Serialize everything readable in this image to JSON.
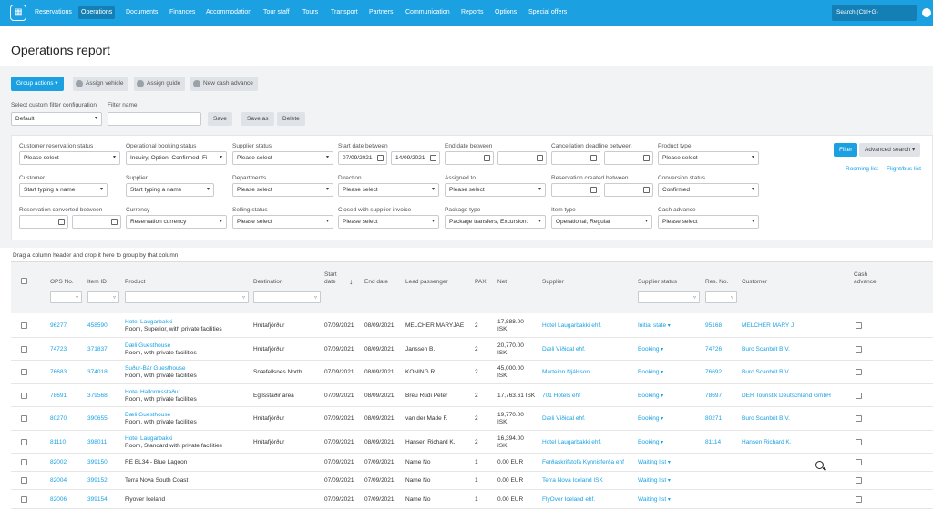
{
  "nav": {
    "search_placeholder": "Search (Ctrl+G)",
    "items": [
      "Reservations",
      "Operations",
      "Documents",
      "Finances",
      "Accommodation",
      "Tour staff",
      "Tours",
      "Transport",
      "Partners",
      "Communication",
      "Reports",
      "Options",
      "Special offers"
    ]
  },
  "page": {
    "title": "Operations report"
  },
  "actions": {
    "group_actions": "Group actions",
    "assign_vehicle": "Assign vehicle",
    "assign_guide": "Assign guide",
    "new_cash_advance": "New cash advance"
  },
  "custom_filter": {
    "select_label": "Select custom filter configuration",
    "select_value": "Default",
    "name_label": "Filter name",
    "name_value": "",
    "save": "Save",
    "save_as": "Save as",
    "delete": "Delete"
  },
  "filters": {
    "customer_reservation_status": {
      "label": "Customer reservation status",
      "value": "Please select"
    },
    "operational_booking_status": {
      "label": "Operational booking status",
      "value": "Inquiry, Option, Confirmed, Fi"
    },
    "supplier_status": {
      "label": "Supplier status",
      "value": "Please select"
    },
    "start_date_between": {
      "label": "Start date between",
      "from": "07/09/2021",
      "to": "14/09/2021"
    },
    "end_date_between": {
      "label": "End date between"
    },
    "cancellation_deadline": {
      "label": "Cancellation deadline between"
    },
    "product_type": {
      "label": "Product type",
      "value": "Please select"
    },
    "customer": {
      "label": "Customer",
      "placeholder": "Start typing a name"
    },
    "supplier": {
      "label": "Supplier",
      "placeholder": "Start typing a name"
    },
    "departments": {
      "label": "Departments",
      "value": "Please select"
    },
    "direction": {
      "label": "Direction",
      "value": "Please select"
    },
    "assigned_to": {
      "label": "Assigned to",
      "value": "Please select"
    },
    "reservation_created": {
      "label": "Reservation created between"
    },
    "conversion_status": {
      "label": "Conversion status",
      "value": "Confirmed"
    },
    "reservation_converted": {
      "label": "Reservation converted between"
    },
    "currency": {
      "label": "Currency",
      "value": "Reservation currency"
    },
    "selling_status": {
      "label": "Selling status",
      "value": "Please select"
    },
    "closed_with_supplier_invoice": {
      "label": "Closed with supplier invoice",
      "value": "Please select"
    },
    "package_type": {
      "label": "Package type",
      "value": "Package transfers, Excursion:"
    },
    "item_type": {
      "label": "Item type",
      "value": "Operational, Regular"
    },
    "cash_advance": {
      "label": "Cash advance",
      "value": "Please select"
    },
    "filter_button": "Filter",
    "advanced_search": "Advanced search",
    "rooming_list": "Rooming list",
    "flight_bus_list": "Flight/bus list"
  },
  "grid": {
    "group_hint": "Drag a column header and drop it here to group by that column",
    "columns": {
      "ops_no": "OPS No.",
      "item_id": "Item ID",
      "product": "Product",
      "destination": "Destination",
      "start_date_1": "Start",
      "start_date_2": "date",
      "end_date": "End date",
      "lead_passenger": "Lead passenger",
      "pax": "PAX",
      "net": "Net",
      "supplier": "Supplier",
      "supplier_status": "Supplier status",
      "res_no": "Res. No.",
      "customer": "Customer",
      "cash_advance_1": "Cash",
      "cash_advance_2": "advance"
    },
    "rows": [
      {
        "ops": "96277",
        "item": "458590",
        "product": "Hotel Laugarbakki",
        "product_sub": "Room, Superior, with private facilities",
        "dest": "Hrútafjörður",
        "start": "07/09/2021",
        "end": "08/09/2021",
        "lead": "MELCHER MARYJAE",
        "pax": "2",
        "net1": "17,888.00",
        "net2": "ISK",
        "supplier": "Hotel Laugarbakki ehf.",
        "status": "Initial state",
        "res": "95168",
        "customer": "MELCHER MARY J"
      },
      {
        "ops": "74723",
        "item": "371837",
        "product": "Dæli Guesthouse",
        "product_sub": "Room, with private facilities",
        "dest": "Hrútafjörður",
        "start": "07/09/2021",
        "end": "08/09/2021",
        "lead": "Janssen B.",
        "pax": "2",
        "net1": "20,770.00",
        "net2": "ISK",
        "supplier": "Dæli Víðidal ehf.",
        "status": "Booking",
        "res": "74726",
        "customer": "Buro Scanbrit B.V."
      },
      {
        "ops": "76683",
        "item": "374018",
        "product": "Suður-Bár Guesthouse",
        "product_sub": "Room, with private facilities",
        "dest": "Snæfellsnes North",
        "start": "07/09/2021",
        "end": "08/09/2021",
        "lead": "KONING R.",
        "pax": "2",
        "net1": "45,000.00",
        "net2": "ISK",
        "supplier": "Marteinn Njálsson",
        "status": "Booking",
        "res": "76692",
        "customer": "Buro Scanbrit B.V."
      },
      {
        "ops": "78691",
        "item": "379568",
        "product": "Hotel Hallormsstaður",
        "product_sub": "Room, with private facilities",
        "dest": "Egilsstaðir area",
        "start": "07/09/2021",
        "end": "08/09/2021",
        "lead": "Breu Rudi Peter",
        "pax": "2",
        "net1": "17,763.61 ISK",
        "net2": "",
        "supplier": "701 Hotels ehf",
        "status": "Booking",
        "res": "78697",
        "customer": "DER Touristik Deutschland GmbH"
      },
      {
        "ops": "80270",
        "item": "390655",
        "product": "Dæli Guesthouse",
        "product_sub": "Room, with private facilities",
        "dest": "Hrútafjörður",
        "start": "07/09/2021",
        "end": "08/09/2021",
        "lead": "van der Made F.",
        "pax": "2",
        "net1": "19,770.00",
        "net2": "ISK",
        "supplier": "Dæli Víðidal ehf.",
        "status": "Booking",
        "res": "80271",
        "customer": "Buro Scanbrit B.V."
      },
      {
        "ops": "81110",
        "item": "398011",
        "product": "Hotel Laugarbakki",
        "product_sub": "Room, Standard with private facilities",
        "dest": "Hrútafjörður",
        "start": "07/09/2021",
        "end": "08/09/2021",
        "lead": "Hansen Richard K.",
        "pax": "2",
        "net1": "16,394.00",
        "net2": "ISK",
        "supplier": "Hotel Laugarbakki ehf.",
        "status": "Booking",
        "res": "81114",
        "customer": "Hansen Richard K."
      },
      {
        "ops": "82002",
        "item": "399150",
        "product": "RE BL34 - Blue Lagoon",
        "product_sub": "",
        "dest": "",
        "start": "07/09/2021",
        "end": "07/09/2021",
        "lead": "Name No",
        "pax": "1",
        "net1": "0.00 EUR",
        "net2": "",
        "supplier": "Ferðaskrifstofa Kynnisferða ehf",
        "status": "Waiting list",
        "res": "",
        "customer": ""
      },
      {
        "ops": "82004",
        "item": "399152",
        "product": "Terra Nova South Coast",
        "product_sub": "",
        "dest": "",
        "start": "07/09/2021",
        "end": "07/09/2021",
        "lead": "Name No",
        "pax": "1",
        "net1": "0.00 EUR",
        "net2": "",
        "supplier": "Terra Nova Iceland ISK",
        "status": "Waiting list",
        "res": "",
        "customer": ""
      },
      {
        "ops": "82006",
        "item": "399154",
        "product": "Flyover Iceland",
        "product_sub": "",
        "dest": "",
        "start": "07/09/2021",
        "end": "07/09/2021",
        "lead": "Name No",
        "pax": "1",
        "net1": "0.00 EUR",
        "net2": "",
        "supplier": "FlyOver Iceland ehf.",
        "status": "Waiting list",
        "res": "",
        "customer": ""
      }
    ]
  }
}
